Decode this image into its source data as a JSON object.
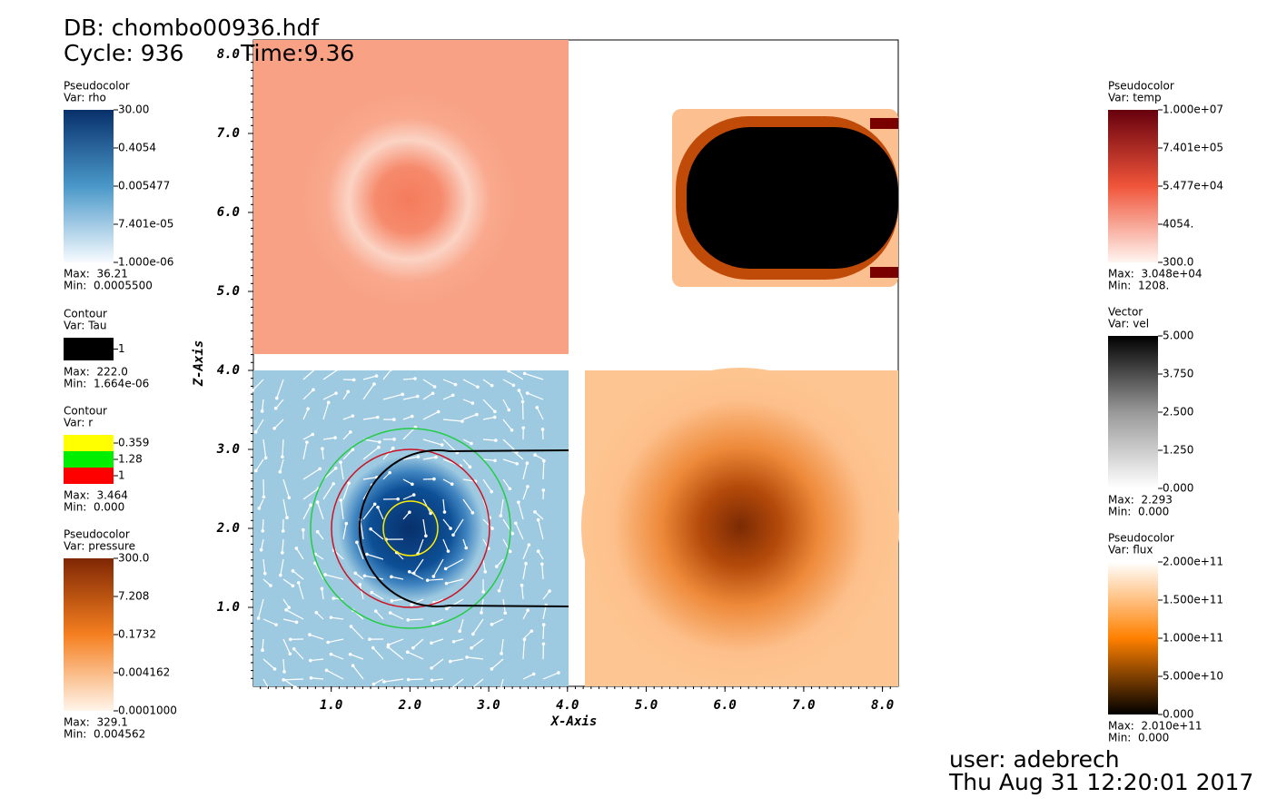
{
  "header": {
    "db": "DB: chombo00936.hdf",
    "cycle": "Cycle: 936",
    "time": "Time:9.36"
  },
  "axes": {
    "x_title": "X-Axis",
    "y_title": "Z-Axis",
    "xticks": [
      "1.0",
      "2.0",
      "3.0",
      "4.0",
      "5.0",
      "6.0",
      "7.0",
      "8.0"
    ],
    "yticks": [
      "1.0",
      "2.0",
      "3.0",
      "4.0",
      "5.0",
      "6.0",
      "7.0",
      "8.0"
    ]
  },
  "legends_left": [
    {
      "plot": "Pseudocolor",
      "var": "Var: rho",
      "labels": [
        "30.00",
        "0.4054",
        "0.005477",
        "7.401e-05",
        "1.000e-06"
      ],
      "max": "Max:  36.21",
      "min": "Min:  0.0005500"
    },
    {
      "plot": "Contour",
      "var": "Var: Tau",
      "labels": [
        "1"
      ],
      "max": "Max:  222.0",
      "min": "Min:  1.664e-06"
    },
    {
      "plot": "Contour",
      "var": "Var: r",
      "labels": [
        "0.359",
        "1.28",
        "1"
      ],
      "max": "Max:  3.464",
      "min": "Min:  0.000"
    },
    {
      "plot": "Pseudocolor",
      "var": "Var: pressure",
      "labels": [
        "300.0",
        "7.208",
        "0.1732",
        "0.004162",
        "0.0001000"
      ],
      "max": "Max:  329.1",
      "min": "Min:  0.004562"
    }
  ],
  "legends_right": [
    {
      "plot": "Pseudocolor",
      "var": "Var: temp",
      "labels": [
        "1.000e+07",
        "7.401e+05",
        "5.477e+04",
        "4054.",
        "300.0"
      ],
      "max": "Max:  3.048e+04",
      "min": "Min:  1208."
    },
    {
      "plot": "Vector",
      "var": "Var: vel",
      "labels": [
        "5.000",
        "3.750",
        "2.500",
        "1.250",
        "0.000"
      ],
      "max": "Max:  2.293",
      "min": "Min:  0.000"
    },
    {
      "plot": "Pseudocolor",
      "var": "Var: flux",
      "labels": [
        "2.000e+11",
        "1.500e+11",
        "1.000e+11",
        "5.000e+10",
        "0.000"
      ],
      "max": "Max:  2.010e+11",
      "min": "Min:  0.000"
    }
  ],
  "footer": {
    "user": "user: adebrech",
    "date": "Thu Aug 31 12:20:01 2017"
  }
}
